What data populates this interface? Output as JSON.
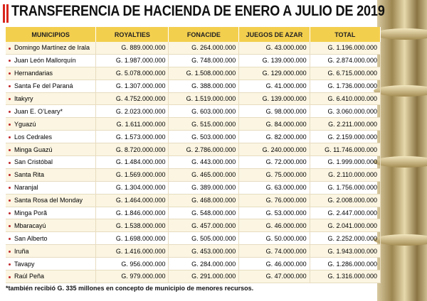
{
  "header": {
    "title": "TRANSFERENCIA DE HACIENDA DE ENERO A JULIO DE 2019"
  },
  "table": {
    "columns": [
      "MUNICIPIOS",
      "ROYALTIES",
      "FONACIDE",
      "JUEGOS DE AZAR",
      "TOTAL"
    ],
    "rows": [
      [
        "Domingo Martínez de Irala",
        "G. 889.000.000",
        "G. 264.000.000",
        "G. 43.000.000",
        "G. 1.196.000.000"
      ],
      [
        "Juan León Mallorquín",
        "G. 1.987.000.000",
        "G. 748.000.000",
        "G. 139.000.000",
        "G. 2.874.000.000"
      ],
      [
        "Hernandarias",
        "G. 5.078.000.000",
        "G. 1.508.000.000",
        "G. 129.000.000",
        "G. 6.715.000.000"
      ],
      [
        "Santa Fe del Paraná",
        "G. 1.307.000.000",
        "G. 388.000.000",
        "G. 41.000.000",
        "G. 1.736.000.000"
      ],
      [
        "Itakyry",
        "G. 4.752.000.000",
        "G. 1.519.000.000",
        "G. 139.000.000",
        "G. 6.410.000.000"
      ],
      [
        "Juan E. O’Leary*",
        "G. 2.023.000.000",
        "G. 603.000.000",
        "G. 98.000.000",
        "G. 3.060.000.000"
      ],
      [
        "Yguazú",
        "G. 1.611.000.000",
        "G. 515.000.000",
        "G. 84.000.000",
        "G. 2.211.000.000"
      ],
      [
        "Los Cedrales",
        "G. 1.573.000.000",
        "G. 503.000.000",
        "G. 82.000.000",
        "G. 2.159.000.000"
      ],
      [
        "Minga Guazú",
        "G. 8.720.000.000",
        "G. 2.786.000.000",
        "G. 240.000.000",
        "G. 11.746.000.000"
      ],
      [
        "San Cristóbal",
        "G. 1.484.000.000",
        "G. 443.000.000",
        "G. 72.000.000",
        "G. 1.999.000.000"
      ],
      [
        "Santa Rita",
        "G. 1.569.000.000",
        "G. 465.000.000",
        "G. 75.000.000",
        "G. 2.110.000.000"
      ],
      [
        "Naranjal",
        "G. 1.304.000.000",
        "G. 389.000.000",
        "G. 63.000.000",
        "G. 1.756.000.000"
      ],
      [
        "Santa Rosa del Monday",
        "G. 1.464.000.000",
        "G. 468.000.000",
        "G. 76.000.000",
        "G. 2.008.000.000"
      ],
      [
        "Minga Porã",
        "G. 1.846.000.000",
        "G. 548.000.000",
        "G. 53.000.000",
        "G. 2.447.000.000"
      ],
      [
        "Mbaracayú",
        "G. 1.538.000.000",
        "G. 457.000.000",
        "G. 46.000.000",
        "G. 2.041.000.000"
      ],
      [
        "San Alberto",
        "G. 1.698.000.000",
        "G. 505.000.000",
        "G. 50.000.000",
        "G. 2.252.000.000"
      ],
      [
        "Iruña",
        "G. 1.416.000.000",
        "G. 453.000.000",
        "G. 74.000.000",
        "G. 1.943.000.000"
      ],
      [
        "Tavapy",
        "G. 956.000.000",
        "G. 284.000.000",
        "G. 46.000.000",
        "G. 1.286.000.000"
      ],
      [
        "Raúl Peña",
        "G. 979.000.000",
        "G. 291.000.000",
        "G. 47.000.000",
        "G. 1.316.000.000"
      ]
    ]
  },
  "footnote": "*también recibió G. 335 millones en concepto de municipio de menores recursos."
}
